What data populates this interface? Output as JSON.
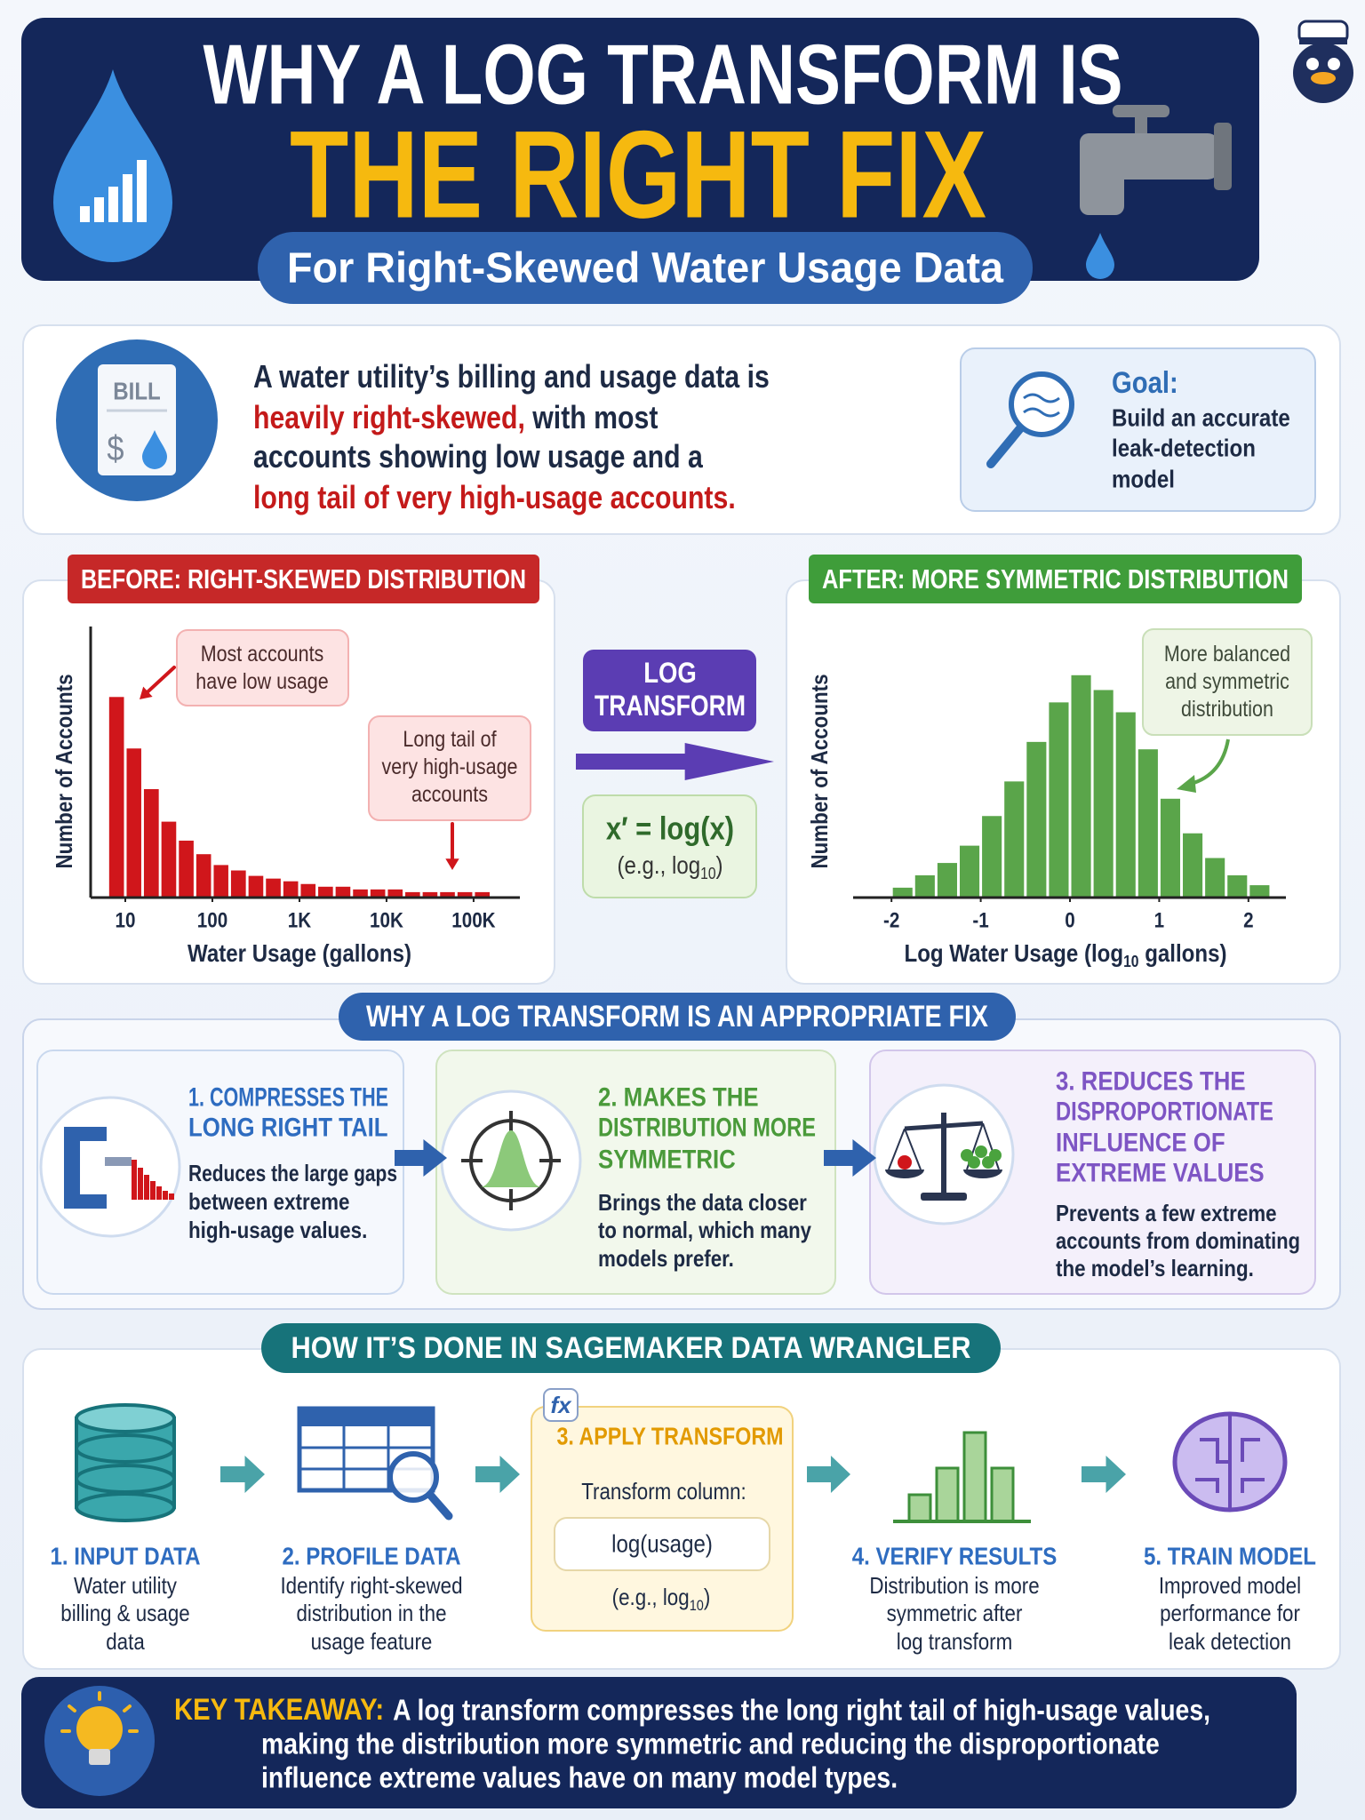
{
  "header": {
    "title_line1": "WHY A LOG TRANSFORM IS",
    "title_line2": "THE RIGHT FIX",
    "subtitle": "For Right-Skewed Water Usage Data"
  },
  "intro": {
    "icon_label": "BILL",
    "icon_symbol": "$",
    "lines": [
      [
        {
          "text": "A water utility’s billing and usage data is"
        }
      ],
      [
        {
          "text": "heavily right-skewed,",
          "color": "#c41a1a"
        },
        {
          "text": " with most"
        }
      ],
      [
        {
          "text": "accounts showing low usage and a"
        }
      ],
      [
        {
          "text": "long tail of very high-usage accounts.",
          "color": "#c41a1a"
        }
      ]
    ]
  },
  "goal": {
    "label": "Goal:",
    "lines": [
      "Build an accurate",
      "leak-detection",
      "model"
    ]
  },
  "chart_data": [
    {
      "type": "histogram",
      "title": "BEFORE: RIGHT-SKEWED DISTRIBUTION",
      "title_color": "#c62828",
      "x_label": [
        {
          "text": "Water Usage (gallons)"
        }
      ],
      "y_label": "Number of Accounts",
      "color": "#d0161b",
      "xscale": "log",
      "show_y_axis": true,
      "bins": [
        6.3,
        10,
        15.8,
        25.1,
        39.8,
        63.1,
        100,
        158,
        251,
        398,
        631,
        1000,
        1585,
        2512,
        3981,
        6310,
        10000,
        15849,
        25119,
        39811,
        63096,
        100000,
        158489
      ],
      "values": [
        74,
        55,
        40,
        28,
        21,
        16,
        12,
        10,
        8,
        7,
        6,
        5,
        4,
        4,
        3,
        3,
        3,
        2,
        2,
        2,
        2,
        2
      ],
      "xlim": [
        4,
        340000
      ],
      "ylim": [
        0,
        100
      ],
      "xticks": [
        10,
        100,
        {
          "value": 1000,
          "label": "1K"
        },
        {
          "value": 10000,
          "label": "10K"
        },
        {
          "value": 100000,
          "label": "100K"
        }
      ],
      "annotations": [
        {
          "lines": [
            "Most accounts",
            "have low usage"
          ]
        },
        {
          "lines": [
            "Long tail of",
            "very high-usage",
            "accounts"
          ]
        }
      ]
    },
    {
      "type": "histogram",
      "title": "AFTER: MORE SYMMETRIC DISTRIBUTION",
      "title_color": "#3f9d3a",
      "x_label": [
        {
          "text": "Log Water Usage (log"
        },
        {
          "text": "10",
          "sub": true
        },
        {
          "text": " gallons)"
        }
      ],
      "y_label": "Number of Accounts",
      "color": "#5aa54a",
      "xscale": "linear",
      "show_y_axis": false,
      "bins": [
        -2,
        -1.75,
        -1.5,
        -1.25,
        -1,
        -0.75,
        -0.5,
        -0.25,
        0,
        0.25,
        0.5,
        0.75,
        1,
        1.25,
        1.5,
        1.75,
        2,
        2.25
      ],
      "values": [
        4,
        9,
        14,
        21,
        33,
        47,
        63,
        79,
        90,
        84,
        75,
        60,
        40,
        26,
        16,
        9,
        5
      ],
      "xlim": [
        -2.43,
        2.42
      ],
      "ylim": [
        0,
        100
      ],
      "xticks": [
        -2,
        -1,
        0,
        1,
        2
      ],
      "annotations": [
        {
          "lines": [
            "More balanced",
            "and symmetric",
            "distribution"
          ]
        }
      ]
    }
  ],
  "transform": {
    "label_lines": [
      "LOG",
      "TRANSFORM"
    ],
    "formula": "x′ = log(x)",
    "example": [
      {
        "text": "(e.g., log"
      },
      {
        "text": "10",
        "sub": true
      },
      {
        "text": ")"
      }
    ]
  },
  "why": {
    "title": "WHY A LOG TRANSFORM IS AN APPROPRIATE FIX",
    "items": [
      {
        "title_lines": [
          "1. COMPRESSES THE",
          "LONG RIGHT TAIL"
        ],
        "desc_lines": [
          "Reduces the large gaps",
          "between extreme",
          "high-usage values."
        ]
      },
      {
        "title_lines": [
          "2. MAKES THE",
          "DISTRIBUTION MORE",
          "SYMMETRIC"
        ],
        "desc_lines": [
          "Brings the data closer",
          "to normal, which many",
          "models prefer."
        ]
      },
      {
        "title_lines": [
          "3. REDUCES THE",
          "DISPROPORTIONATE",
          "INFLUENCE OF",
          "EXTREME VALUES"
        ],
        "desc_lines": [
          "Prevents a few extreme",
          "accounts from dominating",
          "the model’s learning."
        ]
      }
    ]
  },
  "how": {
    "title": "HOW IT’S DONE IN SAGEMAKER DATA WRANGLER",
    "steps": [
      {
        "title": "1. INPUT DATA",
        "desc_lines": [
          "Water utility",
          "billing & usage",
          "data"
        ]
      },
      {
        "title": "2. PROFILE DATA",
        "desc_lines": [
          "Identify right-skewed",
          "distribution in the",
          "usage feature"
        ]
      },
      {
        "title": "3. APPLY TRANSFORM",
        "badge": "fx",
        "label": "Transform column:",
        "code": "log(usage)",
        "example": [
          {
            "text": "(e.g., log"
          },
          {
            "text": "10",
            "sub": true
          },
          {
            "text": ")"
          }
        ]
      },
      {
        "title": "4. VERIFY RESULTS",
        "desc_lines": [
          "Distribution is more",
          "symmetric after",
          "log transform"
        ]
      },
      {
        "title": "5. TRAIN MODEL",
        "desc_lines": [
          "Improved model",
          "performance for",
          "leak detection"
        ]
      }
    ]
  },
  "takeaway": {
    "label": "KEY TAKEAWAY:",
    "lines": [
      "A log transform compresses the long right tail of high-usage values,",
      "making the distribution more symmetric and reducing the disproportionate",
      "influence extreme values have on many model types."
    ]
  }
}
